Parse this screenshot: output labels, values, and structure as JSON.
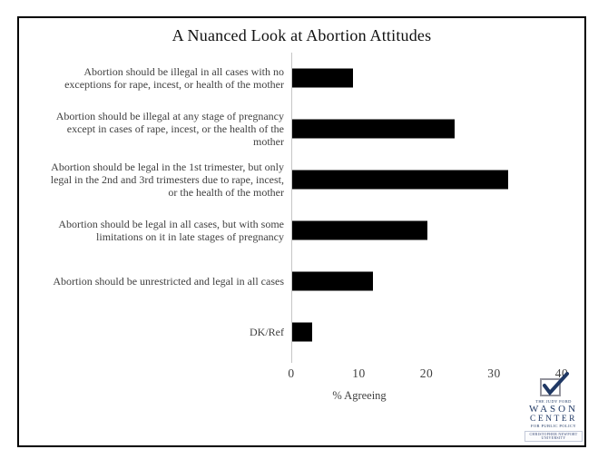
{
  "title": "A Nuanced Look at Abortion Attitudes",
  "chart_data": {
    "type": "bar",
    "orientation": "horizontal",
    "title": "A Nuanced Look at Abortion Attitudes",
    "categories": [
      "Abortion should be illegal in all cases with no\nexceptions for rape, incest, or health of the mother",
      "Abortion should be illegal at any stage of pregnancy\nexcept in cases of rape, incest, or the health of the\nmother",
      "Abortion should be legal in the 1st trimester, but only\nlegal in the 2nd and 3rd trimesters due to rape, incest,\nor the health of the mother",
      "Abortion should be legal in all cases, but with some\nlimitations on it in late stages of pregnancy",
      "Abortion should be unrestricted and legal in all cases",
      "DK/Ref"
    ],
    "values": [
      9,
      24,
      32,
      20,
      12,
      3
    ],
    "xlabel": "% Agreeing",
    "ylabel": "",
    "xlim": [
      0,
      40
    ],
    "xticks": [
      0,
      10,
      20,
      30,
      40
    ],
    "grid": false,
    "legend": "none",
    "bar_color": "#000000",
    "axis_line_color": "#c6c6c6"
  },
  "logo": {
    "line1": "THE JUDY FORD",
    "line2": "WASON",
    "line3": "CENTER",
    "line4": "FOR PUBLIC POLICY",
    "banner": "CHRISTOPHER NEWPORT UNIVERSITY",
    "accent_color": "#1f3864"
  }
}
